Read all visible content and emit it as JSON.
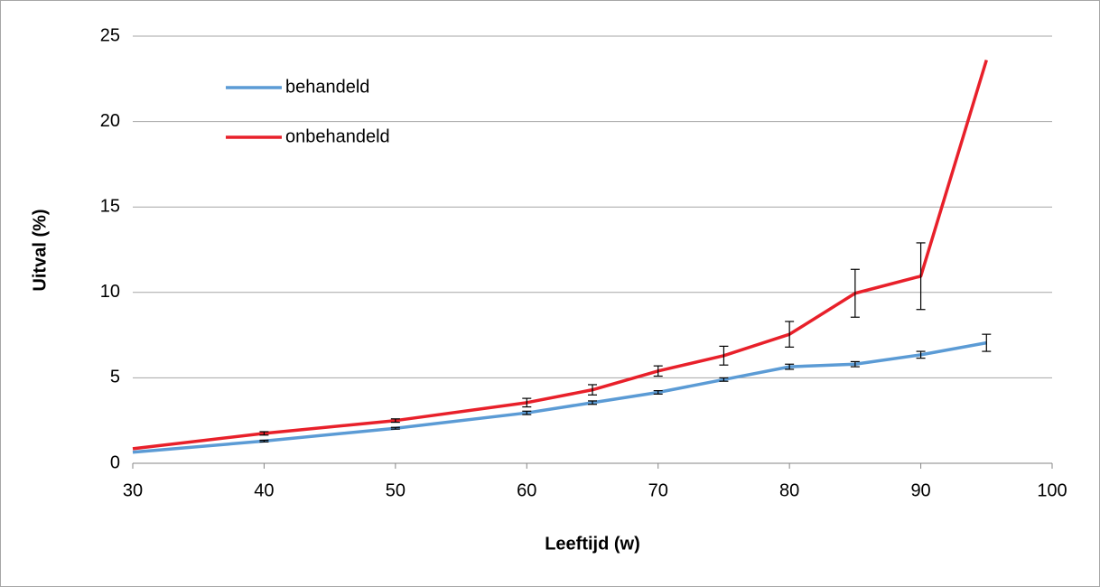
{
  "chart_data": {
    "type": "line",
    "x_label": "Leeftijd (w)",
    "y_label": "Uitval (%)",
    "x": [
      30,
      40,
      50,
      60,
      65,
      70,
      75,
      80,
      85,
      90,
      95
    ],
    "series": [
      {
        "name": "behandeld",
        "color": "#5b9bd5",
        "values": [
          0.65,
          1.3,
          2.05,
          2.95,
          3.55,
          4.15,
          4.9,
          5.65,
          5.8,
          6.35,
          7.05
        ],
        "errors": [
          null,
          0.05,
          0.05,
          0.1,
          0.1,
          0.1,
          0.1,
          0.15,
          0.15,
          0.2,
          0.5
        ]
      },
      {
        "name": "onbehandeld",
        "color": "#e8202a",
        "values": [
          0.85,
          1.75,
          2.5,
          3.55,
          4.3,
          5.4,
          6.3,
          7.55,
          9.95,
          10.95,
          23.6
        ],
        "errors": [
          null,
          0.1,
          0.1,
          0.25,
          0.3,
          0.3,
          0.55,
          0.75,
          1.4,
          1.95,
          null
        ]
      }
    ],
    "xlim": [
      30,
      100
    ],
    "ylim": [
      0,
      25
    ],
    "xticks": [
      30,
      40,
      50,
      60,
      70,
      80,
      90,
      100
    ],
    "yticks": [
      0,
      5,
      10,
      15,
      20,
      25
    ],
    "grid": true,
    "legend": "upper-left"
  }
}
